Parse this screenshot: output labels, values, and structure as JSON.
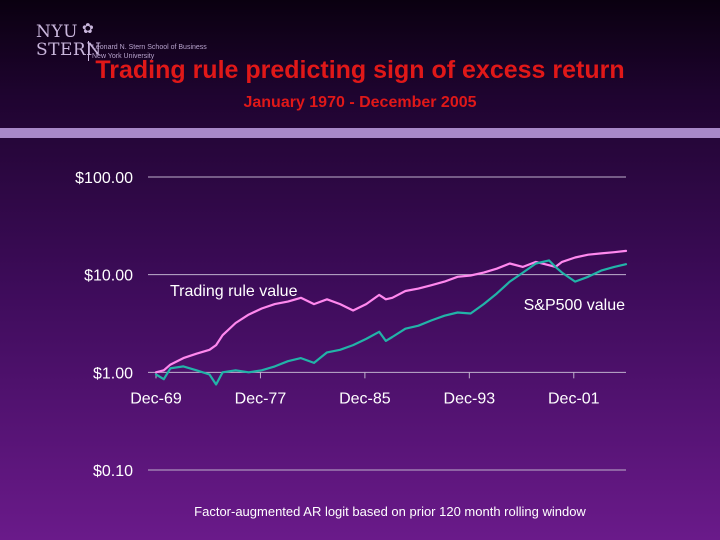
{
  "logo": {
    "nyu": "NYU",
    "stern": "STERN",
    "line1": "Leonard N. Stern School of Business",
    "line2": "New York University",
    "torch_icon": "torch-icon"
  },
  "title": "Trading rule predicting sign of excess return",
  "subtitle": "January 1970 - December 2005",
  "footnote": "Factor-augmented AR logit based on prior 120 month rolling window",
  "chart_data": {
    "type": "line",
    "title": "Trading rule predicting sign of excess return",
    "subtitle": "January 1970 - December 2005",
    "y_scale": "log",
    "ylim": [
      0.1,
      100
    ],
    "xlim": [
      1969.9,
      2005.9
    ],
    "y_ticks": [
      {
        "value": 100,
        "label": "$100.00"
      },
      {
        "value": 10,
        "label": "$10.00"
      },
      {
        "value": 1,
        "label": "$1.00"
      },
      {
        "value": 0.1,
        "label": "$0.10"
      }
    ],
    "x_ticks": [
      {
        "value": 1969.9,
        "label": "Dec-69"
      },
      {
        "value": 1977.9,
        "label": "Dec-77"
      },
      {
        "value": 1985.9,
        "label": "Dec-85"
      },
      {
        "value": 1993.9,
        "label": "Dec-93"
      },
      {
        "value": 2001.9,
        "label": "Dec-01"
      }
    ],
    "grid": true,
    "series": [
      {
        "name": "Trading rule value",
        "color": "#ff88ee",
        "x": [
          1969.9,
          1970.5,
          1971,
          1972,
          1973,
          1974,
          1974.5,
          1975,
          1976,
          1977,
          1978,
          1979,
          1980,
          1981,
          1982,
          1983,
          1984,
          1985,
          1986,
          1987,
          1987.5,
          1988,
          1989,
          1990,
          1991,
          1992,
          1993,
          1994,
          1995,
          1996,
          1997,
          1998,
          1999,
          2000,
          2000.5,
          2001,
          2002,
          2003,
          2004,
          2005,
          2005.9
        ],
        "values": [
          1.0,
          1.05,
          1.2,
          1.4,
          1.55,
          1.7,
          1.9,
          2.4,
          3.2,
          3.9,
          4.5,
          5.0,
          5.3,
          5.8,
          5.0,
          5.6,
          5.0,
          4.3,
          5.0,
          6.2,
          5.6,
          5.8,
          6.8,
          7.2,
          7.8,
          8.5,
          9.5,
          9.8,
          10.5,
          11.5,
          13.0,
          12.0,
          13.5,
          12.5,
          12.0,
          13.5,
          15.0,
          16.0,
          16.5,
          17.0,
          17.5
        ]
      },
      {
        "name": "S&P500 value",
        "color": "#22b3a8",
        "x": [
          1969.9,
          1970.5,
          1971,
          1972,
          1973,
          1974,
          1974.5,
          1975,
          1976,
          1977,
          1978,
          1979,
          1980,
          1981,
          1982,
          1983,
          1984,
          1985,
          1986,
          1987,
          1987.5,
          1988,
          1989,
          1990,
          1991,
          1992,
          1993,
          1994,
          1995,
          1996,
          1997,
          1998,
          1999,
          2000,
          2000.5,
          2001,
          2002,
          2003,
          2004,
          2005,
          2005.9
        ],
        "values": [
          0.95,
          0.85,
          1.1,
          1.15,
          1.05,
          0.95,
          0.75,
          1.0,
          1.05,
          1.0,
          1.05,
          1.15,
          1.3,
          1.4,
          1.25,
          1.6,
          1.7,
          1.9,
          2.2,
          2.6,
          2.1,
          2.3,
          2.8,
          3.0,
          3.4,
          3.8,
          4.1,
          4.0,
          5.0,
          6.4,
          8.5,
          10.5,
          13.0,
          14.0,
          12.0,
          10.5,
          8.5,
          9.5,
          11.0,
          12.0,
          12.8
        ]
      }
    ],
    "annotations": [
      {
        "text": "Trading rule value",
        "series": "Trading rule value"
      },
      {
        "text": "S&P500 value",
        "series": "S&P500 value"
      }
    ]
  }
}
